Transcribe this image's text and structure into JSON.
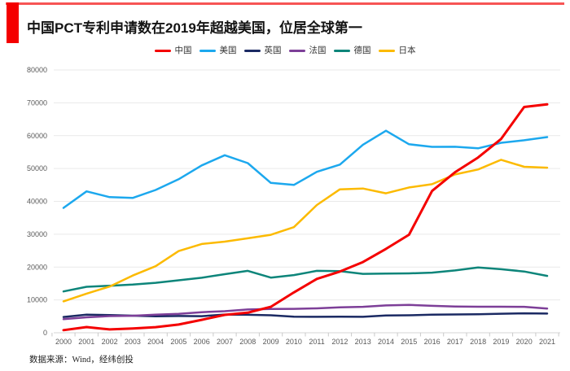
{
  "header": {
    "title": "中国PCT专利申请数在2019年超越美国，位居全球第一"
  },
  "footer": {
    "source": "数据来源：Wind，经纬创投"
  },
  "theme": {
    "accent_red": "#f40000",
    "grid_color": "#e9e9e9",
    "axis_color": "#d6d6d6",
    "tick_color": "#c9c9c9",
    "axis_label_color": "#595959",
    "title_color": "#141414"
  },
  "chart_data": {
    "type": "line",
    "title": "中国PCT专利申请数在2019年超越美国，位居全球第一",
    "xlabel": "",
    "ylabel": "",
    "x": [
      2000,
      2001,
      2002,
      2003,
      2004,
      2005,
      2006,
      2007,
      2008,
      2009,
      2010,
      2011,
      2012,
      2013,
      2014,
      2015,
      2016,
      2017,
      2018,
      2019,
      2020,
      2021
    ],
    "ylim": [
      0,
      80000
    ],
    "ytick_step": 10000,
    "yticks": [
      0,
      10000,
      20000,
      30000,
      40000,
      50000,
      60000,
      70000,
      80000
    ],
    "grid": true,
    "legend_position": "top",
    "series": [
      {
        "id": "china",
        "name": "中国",
        "color": "#f40000",
        "values": [
          781,
          1731,
          1018,
          1295,
          1706,
          2503,
          3942,
          5455,
          6120,
          7900,
          12296,
          16402,
          18617,
          21516,
          25539,
          29846,
          43168,
          48882,
          53345,
          58990,
          68720,
          69540
        ]
      },
      {
        "id": "usa",
        "name": "美国",
        "color": "#1ca8ee",
        "values": [
          38007,
          43055,
          41296,
          41028,
          43464,
          46742,
          50941,
          54043,
          51637,
          45618,
          45008,
          48996,
          51207,
          57239,
          61492,
          57385,
          56595,
          56624,
          56142,
          57840,
          58600,
          59570
        ]
      },
      {
        "id": "uk",
        "name": "英国",
        "color": "#1b2a63",
        "values": [
          4795,
          5503,
          5376,
          5206,
          5027,
          5097,
          5045,
          5542,
          5466,
          5320,
          4891,
          4848,
          4895,
          4865,
          5286,
          5313,
          5496,
          5567,
          5634,
          5786,
          5912,
          5841
        ]
      },
      {
        "id": "france",
        "name": "法国",
        "color": "#7d3f98",
        "values": [
          4138,
          4707,
          5089,
          5171,
          5522,
          5742,
          6256,
          6560,
          7072,
          7237,
          7288,
          7438,
          7739,
          7899,
          8319,
          8476,
          8208,
          8012,
          7914,
          7934,
          7904,
          7380
        ]
      },
      {
        "id": "germany",
        "name": "德国",
        "color": "#0d857a",
        "values": [
          12582,
          13992,
          14326,
          14662,
          15214,
          15985,
          16732,
          17821,
          18855,
          16797,
          17568,
          18851,
          18764,
          17927,
          18008,
          18072,
          18315,
          18982,
          19883,
          19353,
          18643,
          17322
        ]
      },
      {
        "id": "japan",
        "name": "日本",
        "color": "#fcba00",
        "values": [
          9567,
          11904,
          14063,
          17414,
          20264,
          24869,
          27025,
          27743,
          28760,
          29827,
          32150,
          38888,
          43660,
          43918,
          42459,
          44235,
          45214,
          48208,
          49702,
          52660,
          50520,
          50260
        ]
      }
    ]
  }
}
